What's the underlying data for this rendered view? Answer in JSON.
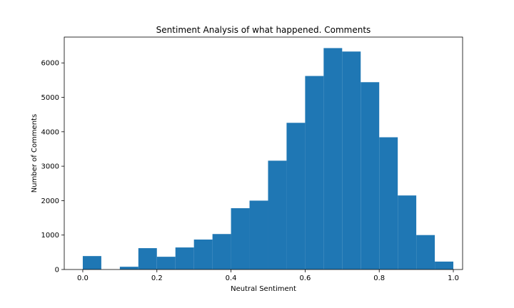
{
  "chart_data": {
    "type": "bar",
    "title": "Sentiment Analysis of what happened. Comments",
    "xlabel": "Neutral Sentiment",
    "ylabel": "Number of Comments",
    "xlim": [
      -0.05,
      1.025
    ],
    "ylim": [
      0,
      6750
    ],
    "xticks": [
      0.0,
      0.2,
      0.4,
      0.6,
      0.8,
      1.0
    ],
    "xtick_labels": [
      "0.0",
      "0.2",
      "0.4",
      "0.6",
      "0.8",
      "1.0"
    ],
    "yticks": [
      0,
      1000,
      2000,
      3000,
      4000,
      5000,
      6000
    ],
    "ytick_labels": [
      "0",
      "1000",
      "2000",
      "3000",
      "4000",
      "5000",
      "6000"
    ],
    "grid": false,
    "color": "#1f77b4",
    "bins": [
      {
        "x0": 0.0,
        "x1": 0.05,
        "value": 390
      },
      {
        "x0": 0.05,
        "x1": 0.1,
        "value": 0
      },
      {
        "x0": 0.1,
        "x1": 0.15,
        "value": 80
      },
      {
        "x0": 0.15,
        "x1": 0.2,
        "value": 620
      },
      {
        "x0": 0.2,
        "x1": 0.25,
        "value": 370
      },
      {
        "x0": 0.25,
        "x1": 0.3,
        "value": 640
      },
      {
        "x0": 0.3,
        "x1": 0.35,
        "value": 870
      },
      {
        "x0": 0.35,
        "x1": 0.4,
        "value": 1030
      },
      {
        "x0": 0.4,
        "x1": 0.45,
        "value": 1780
      },
      {
        "x0": 0.45,
        "x1": 0.5,
        "value": 2000
      },
      {
        "x0": 0.5,
        "x1": 0.55,
        "value": 3160
      },
      {
        "x0": 0.55,
        "x1": 0.6,
        "value": 4260
      },
      {
        "x0": 0.6,
        "x1": 0.65,
        "value": 5620
      },
      {
        "x0": 0.65,
        "x1": 0.7,
        "value": 6430
      },
      {
        "x0": 0.7,
        "x1": 0.75,
        "value": 6330
      },
      {
        "x0": 0.75,
        "x1": 0.8,
        "value": 5440
      },
      {
        "x0": 0.8,
        "x1": 0.85,
        "value": 3840
      },
      {
        "x0": 0.85,
        "x1": 0.9,
        "value": 2150
      },
      {
        "x0": 0.9,
        "x1": 0.95,
        "value": 1000
      },
      {
        "x0": 0.95,
        "x1": 1.0,
        "value": 230
      }
    ]
  }
}
